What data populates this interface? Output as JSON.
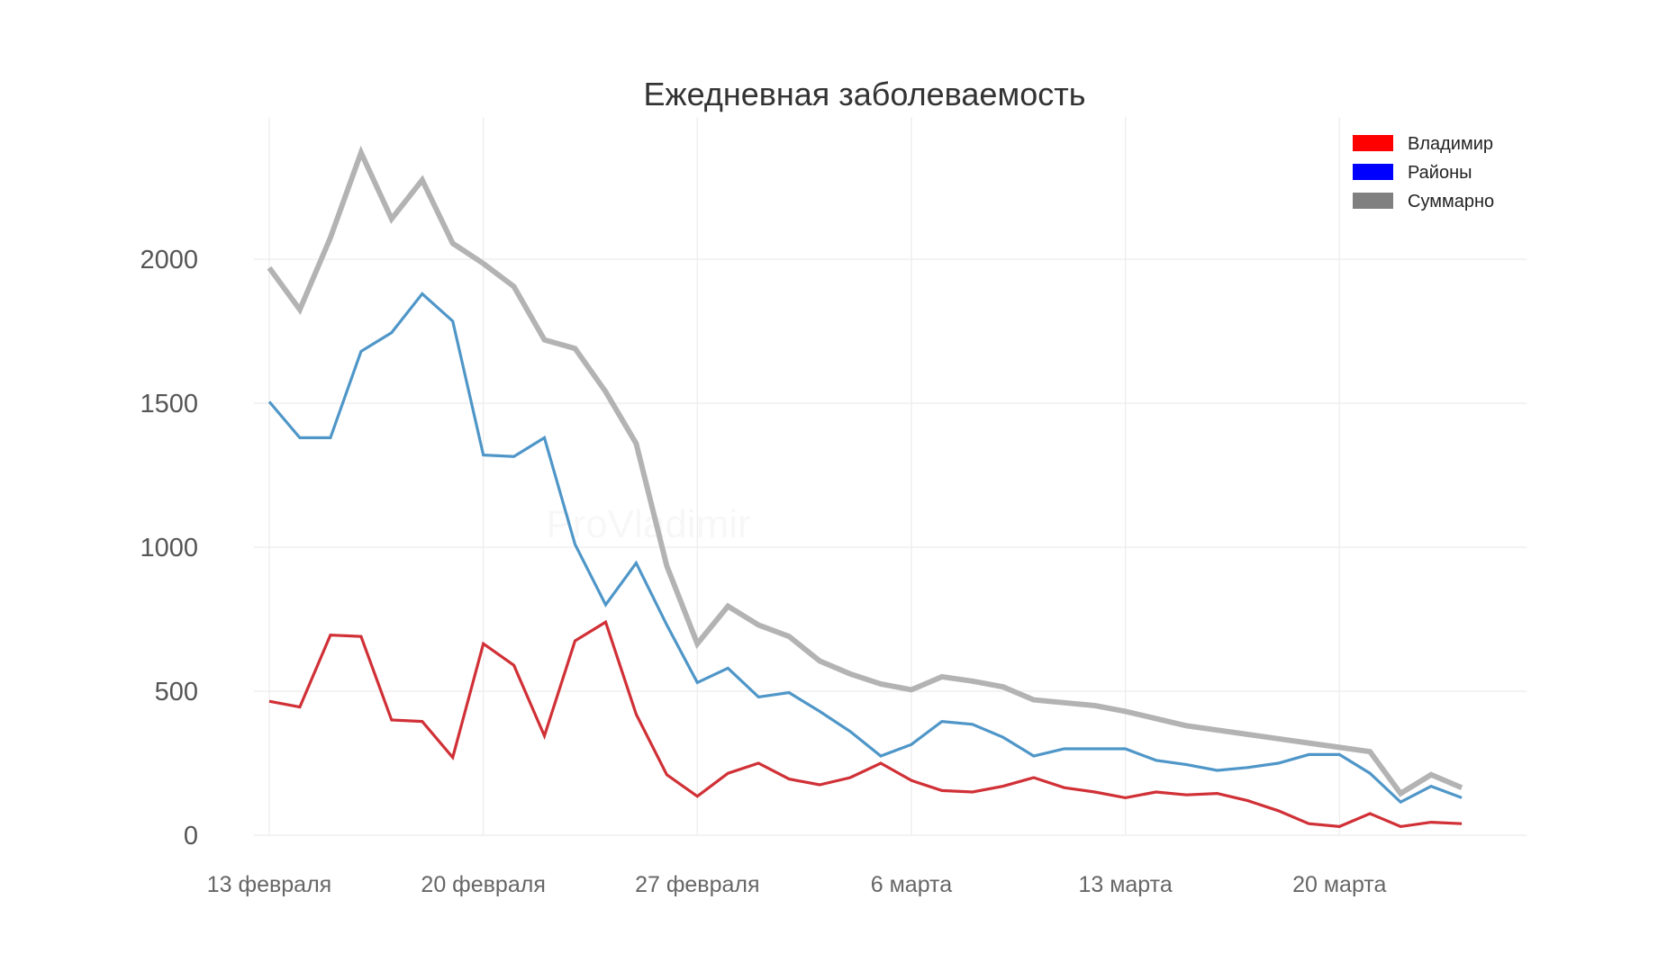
{
  "chart_data": {
    "type": "line",
    "title": "Ежедневная заболеваемость",
    "watermark": "ProVladimir",
    "xlabel": "",
    "ylabel": "",
    "ylim": [
      0,
      2500
    ],
    "yticks": [
      0,
      500,
      1000,
      1500,
      2000
    ],
    "grid": true,
    "legend_position": "top-right",
    "x_tick_labels": [
      "13 февраля",
      "20 февраля",
      "27 февраля",
      "6 марта",
      "13 марта",
      "20 марта"
    ],
    "x_tick_index": [
      0,
      7,
      14,
      21,
      28,
      35
    ],
    "x": [
      "13 февраля",
      "14 февраля",
      "15 февраля",
      "16 февраля",
      "17 февраля",
      "18 февраля",
      "19 февраля",
      "20 февраля",
      "21 февраля",
      "22 февраля",
      "23 февраля",
      "24 февраля",
      "25 февраля",
      "26 февраля",
      "27 февраля",
      "28 февраля",
      "1 марта",
      "2 марта",
      "3 марта",
      "4 марта",
      "5 марта",
      "6 марта",
      "7 марта",
      "8 марта",
      "9 марта",
      "10 марта",
      "11 марта",
      "12 марта",
      "13 марта",
      "14 марта",
      "15 марта",
      "16 марта",
      "17 марта",
      "18 марта",
      "19 марта",
      "20 марта",
      "21 марта",
      "22 марта",
      "23 марта",
      "24 марта"
    ],
    "series": [
      {
        "name": "Суммарно",
        "legend_color": "#808080",
        "line_color": "#b3b3b3",
        "values": [
          1970,
          1825,
          2075,
          2370,
          2140,
          2275,
          2055,
          1985,
          1905,
          1720,
          1690,
          1540,
          1360,
          935,
          665,
          795,
          730,
          690,
          605,
          560,
          525,
          505,
          550,
          535,
          515,
          470,
          460,
          450,
          430,
          405,
          380,
          365,
          350,
          335,
          320,
          305,
          290,
          145,
          210,
          165
        ]
      },
      {
        "name": "Районы",
        "legend_color": "#0000ff",
        "line_color": "#4f96c8",
        "values": [
          1505,
          1380,
          1380,
          1680,
          1745,
          1880,
          1785,
          1320,
          1315,
          1380,
          1010,
          800,
          945,
          730,
          530,
          580,
          480,
          495,
          430,
          360,
          275,
          315,
          395,
          385,
          340,
          275,
          300,
          300,
          300,
          260,
          245,
          225,
          235,
          250,
          280,
          280,
          215,
          115,
          170,
          130
        ]
      },
      {
        "name": "Владимир",
        "legend_color": "#ff0000",
        "line_color": "#d03036",
        "values": [
          465,
          445,
          695,
          690,
          400,
          395,
          270,
          665,
          590,
          345,
          675,
          740,
          420,
          210,
          135,
          215,
          250,
          195,
          175,
          200,
          250,
          190,
          155,
          150,
          170,
          200,
          165,
          150,
          130,
          150,
          140,
          145,
          120,
          85,
          40,
          30,
          75,
          30,
          45,
          40
        ]
      }
    ]
  }
}
